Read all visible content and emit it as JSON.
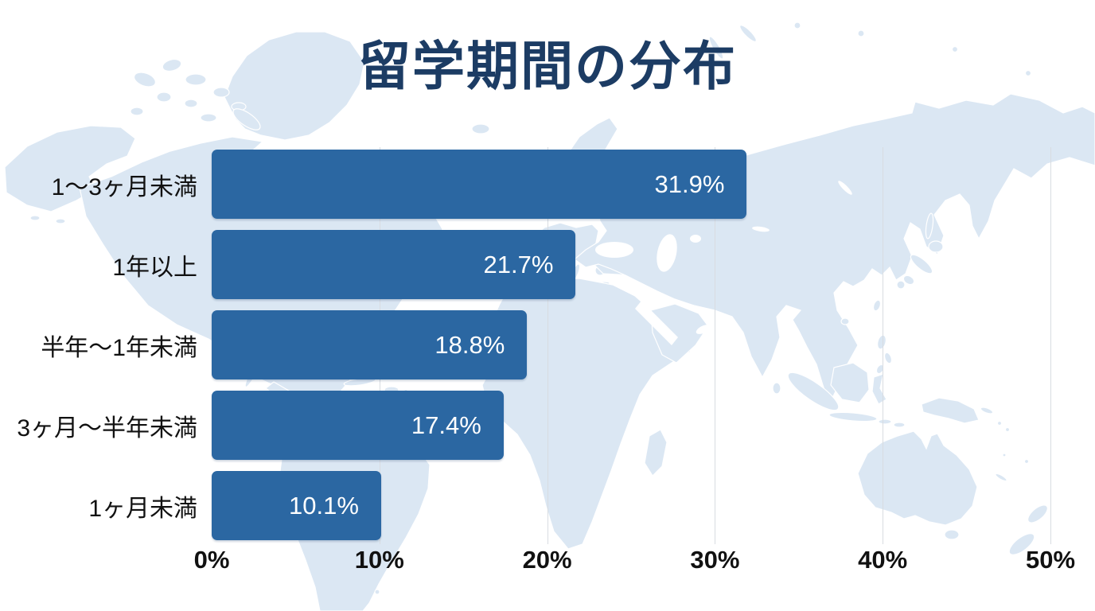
{
  "title": "留学期間の分布",
  "chart_data": {
    "type": "bar",
    "orientation": "horizontal",
    "title": "留学期間の分布",
    "categories": [
      "1〜3ヶ月未満",
      "1年以上",
      "半年〜1年未満",
      "3ヶ月〜半年未満",
      "1ヶ月未満"
    ],
    "values": [
      31.9,
      21.7,
      18.8,
      17.4,
      10.1
    ],
    "value_labels": [
      "31.9%",
      "21.7%",
      "18.8%",
      "17.4%",
      "10.1%"
    ],
    "x_ticks": [
      "0%",
      "10%",
      "20%",
      "30%",
      "40%",
      "50%"
    ],
    "xlim": [
      0,
      50
    ],
    "grid": true,
    "legend": "none",
    "bar_color": "#2b67a2",
    "value_text_color": "#ffffff",
    "title_color": "#1c3c64",
    "label_color": "#111111",
    "grid_color": "#d8dce1",
    "map_color": "#dbe7f3",
    "background_color": "#ffffff"
  }
}
